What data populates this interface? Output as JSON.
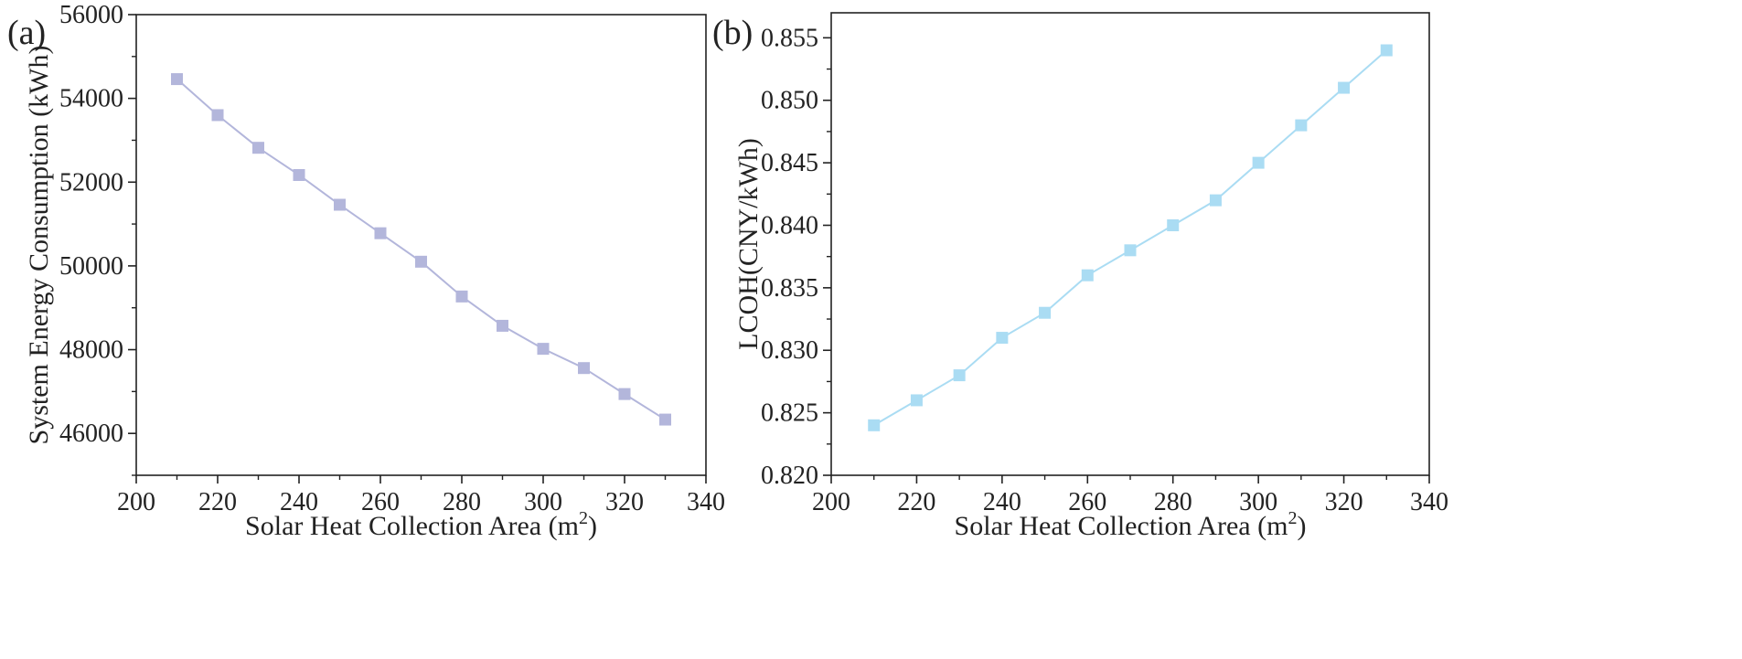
{
  "chart_data": [
    {
      "type": "line",
      "panel_label": "(a)",
      "title": "",
      "xlabel": "Solar Heat Collection Area (m",
      "xlabel_superscript": "2",
      "xlabel_suffix": ")",
      "ylabel": "System Energy Consumption (kWh)",
      "xlim": [
        200,
        340
      ],
      "ylim": [
        45000,
        56000
      ],
      "xticks": [
        200,
        220,
        240,
        260,
        280,
        300,
        320,
        340
      ],
      "yticks": [
        46000,
        48000,
        50000,
        52000,
        54000,
        56000
      ],
      "xtick_labels": [
        "200",
        "220",
        "240",
        "260",
        "280",
        "300",
        "320",
        "340"
      ],
      "ytick_labels": [
        "46000",
        "48000",
        "50000",
        "52000",
        "54000",
        "56000"
      ],
      "series": [
        {
          "name": "System Energy Consumption",
          "color": "#b3b6db",
          "marker": "square",
          "x": [
            210,
            220,
            230,
            240,
            250,
            260,
            270,
            280,
            290,
            300,
            310,
            320,
            330
          ],
          "values": [
            54460,
            53600,
            52820,
            52170,
            51460,
            50780,
            50100,
            49270,
            48570,
            48020,
            47560,
            46940,
            46330
          ]
        }
      ]
    },
    {
      "type": "line",
      "panel_label": "(b)",
      "title": "",
      "xlabel": "Solar Heat Collection Area (m",
      "xlabel_superscript": "2",
      "xlabel_suffix": ")",
      "ylabel": "LCOH(CNY/kWh)",
      "xlim": [
        200,
        340
      ],
      "ylim": [
        0.82,
        0.857
      ],
      "xticks": [
        200,
        220,
        240,
        260,
        280,
        300,
        320,
        340
      ],
      "yticks": [
        0.82,
        0.825,
        0.83,
        0.835,
        0.84,
        0.845,
        0.85,
        0.855
      ],
      "xtick_labels": [
        "200",
        "220",
        "240",
        "260",
        "280",
        "300",
        "320",
        "340"
      ],
      "ytick_labels": [
        "0.820",
        "0.825",
        "0.830",
        "0.835",
        "0.840",
        "0.845",
        "0.850",
        "0.855"
      ],
      "series": [
        {
          "name": "LCOH",
          "color": "#aadcf3",
          "marker": "square",
          "x": [
            210,
            220,
            230,
            240,
            250,
            260,
            270,
            280,
            290,
            300,
            310,
            320,
            330
          ],
          "values": [
            0.824,
            0.826,
            0.828,
            0.831,
            0.833,
            0.836,
            0.838,
            0.84,
            0.842,
            0.845,
            0.848,
            0.851,
            0.854
          ]
        }
      ]
    }
  ]
}
